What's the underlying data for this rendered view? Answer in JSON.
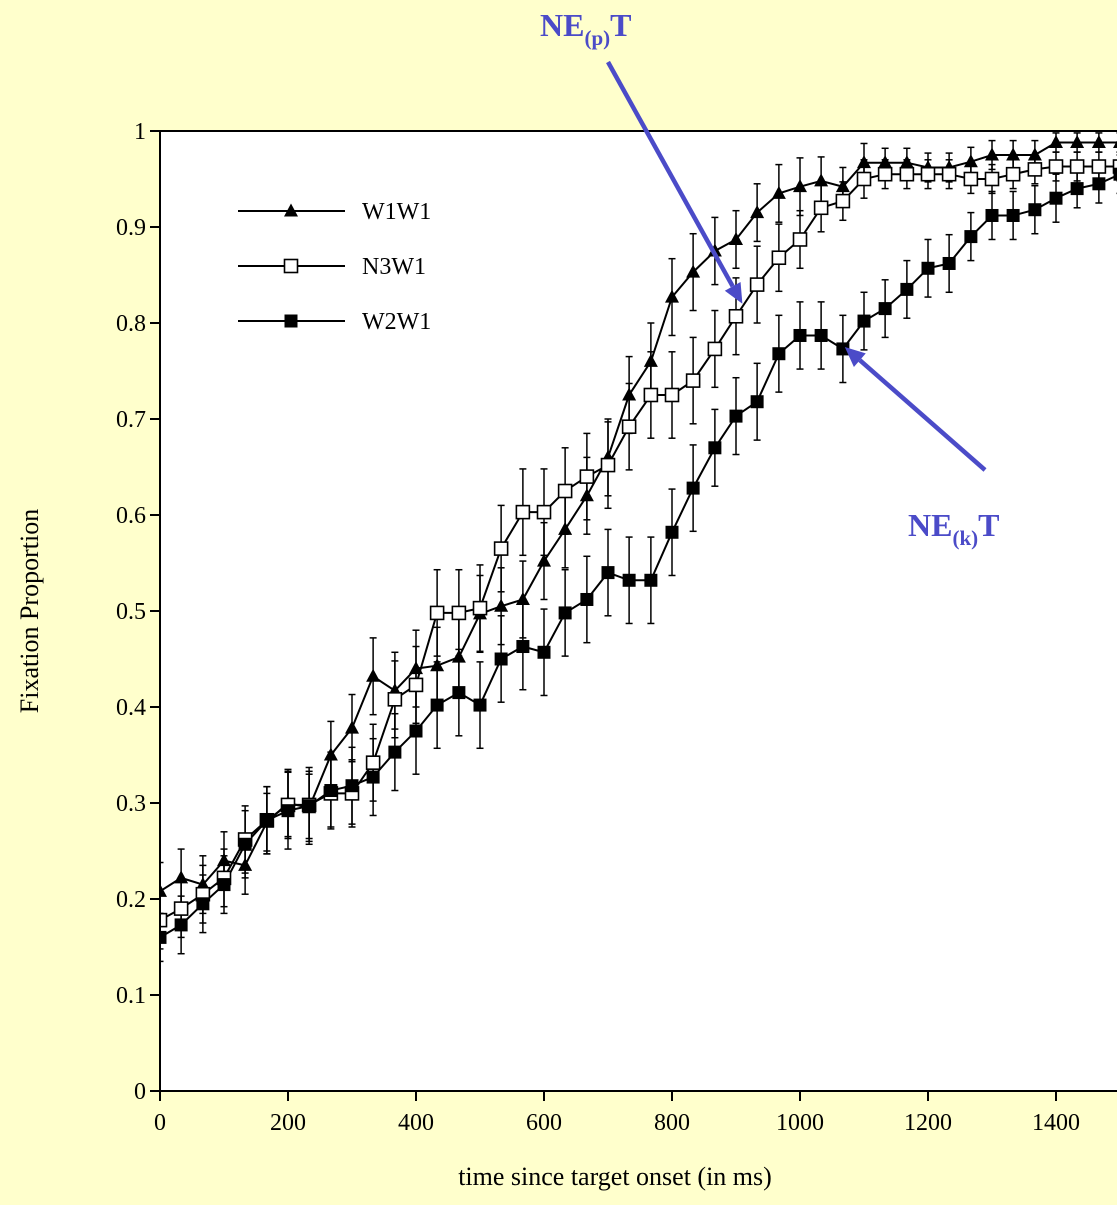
{
  "chart_data": {
    "type": "line",
    "title": "",
    "xlabel": "time since target onset (in ms)",
    "ylabel": "Fixation Proportion",
    "xlim": [
      0,
      1500
    ],
    "ylim": [
      0,
      1
    ],
    "xticks": [
      0,
      200,
      400,
      600,
      800,
      1000,
      1200,
      1400
    ],
    "xtick_labels": [
      "0",
      "200",
      "400",
      "600",
      "800",
      "1000",
      "1200",
      "1400"
    ],
    "yticks": [
      0,
      0.1,
      0.2,
      0.3,
      0.4,
      0.5,
      0.6,
      0.7,
      0.8,
      0.9,
      1
    ],
    "ytick_labels": [
      "0",
      "0.1",
      "0.2",
      "0.3",
      "0.4",
      "0.5",
      "0.6",
      "0.7",
      "0.8",
      "0.9",
      "1"
    ],
    "grid": false,
    "legend_position": "top-left",
    "x": [
      0,
      33,
      67,
      100,
      133,
      167,
      200,
      233,
      267,
      300,
      333,
      367,
      400,
      433,
      467,
      500,
      533,
      567,
      600,
      633,
      667,
      700,
      733,
      767,
      800,
      833,
      867,
      900,
      933,
      967,
      1000,
      1033,
      1067,
      1100,
      1133,
      1167,
      1200,
      1233,
      1267,
      1300,
      1333,
      1367,
      1400,
      1433,
      1467,
      1500
    ],
    "series": [
      {
        "name": "W1W1",
        "marker": "triangle-filled",
        "values": [
          0.208,
          0.222,
          0.215,
          0.24,
          0.235,
          0.28,
          0.3,
          0.295,
          0.35,
          0.378,
          0.432,
          0.417,
          0.44,
          0.443,
          0.452,
          0.497,
          0.505,
          0.512,
          0.552,
          0.585,
          0.62,
          0.66,
          0.725,
          0.76,
          0.827,
          0.853,
          0.875,
          0.887,
          0.915,
          0.935,
          0.942,
          0.948,
          0.942,
          0.967,
          0.967,
          0.967,
          0.962,
          0.962,
          0.968,
          0.975,
          0.975,
          0.975,
          0.988,
          0.988,
          0.988,
          0.988
        ],
        "errors": [
          0.03,
          0.03,
          0.03,
          0.03,
          0.03,
          0.03,
          0.035,
          0.035,
          0.035,
          0.035,
          0.04,
          0.04,
          0.04,
          0.04,
          0.04,
          0.04,
          0.04,
          0.04,
          0.04,
          0.04,
          0.04,
          0.04,
          0.04,
          0.04,
          0.04,
          0.04,
          0.035,
          0.03,
          0.03,
          0.03,
          0.03,
          0.025,
          0.02,
          0.02,
          0.015,
          0.015,
          0.015,
          0.015,
          0.015,
          0.015,
          0.015,
          0.015,
          0.01,
          0.01,
          0.01,
          0.01
        ]
      },
      {
        "name": "N3W1",
        "marker": "square-open",
        "values": [
          0.178,
          0.19,
          0.205,
          0.222,
          0.262,
          0.282,
          0.298,
          0.298,
          0.31,
          0.31,
          0.342,
          0.408,
          0.423,
          0.498,
          0.498,
          0.503,
          0.565,
          0.603,
          0.603,
          0.625,
          0.64,
          0.652,
          0.692,
          0.725,
          0.725,
          0.74,
          0.773,
          0.807,
          0.84,
          0.868,
          0.887,
          0.92,
          0.927,
          0.95,
          0.955,
          0.955,
          0.955,
          0.955,
          0.95,
          0.95,
          0.955,
          0.96,
          0.963,
          0.963,
          0.963,
          0.963
        ],
        "errors": [
          0.03,
          0.03,
          0.03,
          0.03,
          0.035,
          0.035,
          0.035,
          0.035,
          0.035,
          0.035,
          0.04,
          0.04,
          0.04,
          0.045,
          0.045,
          0.045,
          0.045,
          0.045,
          0.045,
          0.045,
          0.045,
          0.045,
          0.045,
          0.045,
          0.045,
          0.045,
          0.04,
          0.04,
          0.04,
          0.035,
          0.03,
          0.025,
          0.02,
          0.02,
          0.015,
          0.015,
          0.015,
          0.015,
          0.015,
          0.015,
          0.015,
          0.015,
          0.015,
          0.015,
          0.015,
          0.015
        ]
      },
      {
        "name": "W2W1",
        "marker": "square-filled",
        "values": [
          0.16,
          0.173,
          0.195,
          0.215,
          0.257,
          0.282,
          0.292,
          0.297,
          0.313,
          0.318,
          0.327,
          0.353,
          0.375,
          0.402,
          0.415,
          0.402,
          0.45,
          0.463,
          0.457,
          0.498,
          0.512,
          0.54,
          0.532,
          0.532,
          0.582,
          0.628,
          0.67,
          0.703,
          0.718,
          0.768,
          0.787,
          0.787,
          0.773,
          0.802,
          0.815,
          0.835,
          0.857,
          0.862,
          0.89,
          0.912,
          0.912,
          0.918,
          0.93,
          0.94,
          0.945,
          0.955
        ],
        "errors": [
          0.025,
          0.03,
          0.03,
          0.03,
          0.035,
          0.035,
          0.04,
          0.04,
          0.04,
          0.04,
          0.04,
          0.04,
          0.045,
          0.045,
          0.045,
          0.045,
          0.045,
          0.045,
          0.045,
          0.045,
          0.045,
          0.045,
          0.045,
          0.045,
          0.045,
          0.045,
          0.04,
          0.04,
          0.04,
          0.04,
          0.035,
          0.035,
          0.035,
          0.03,
          0.03,
          0.03,
          0.03,
          0.03,
          0.025,
          0.025,
          0.025,
          0.025,
          0.025,
          0.02,
          0.02,
          0.02
        ]
      }
    ],
    "annotations": [
      {
        "base": "NE",
        "sub": "(p)",
        "tail": "T",
        "points_to": {
          "x": 910,
          "y": 0.82
        }
      },
      {
        "base": "NE",
        "sub": "(k)",
        "tail": "T",
        "points_to": {
          "x": 1070,
          "y": 0.775
        }
      }
    ],
    "colors": {
      "background": "#FFFFCC",
      "plot_area": "#FFFFFF",
      "series": "#000000",
      "annotation": "#4B4BC8"
    }
  }
}
